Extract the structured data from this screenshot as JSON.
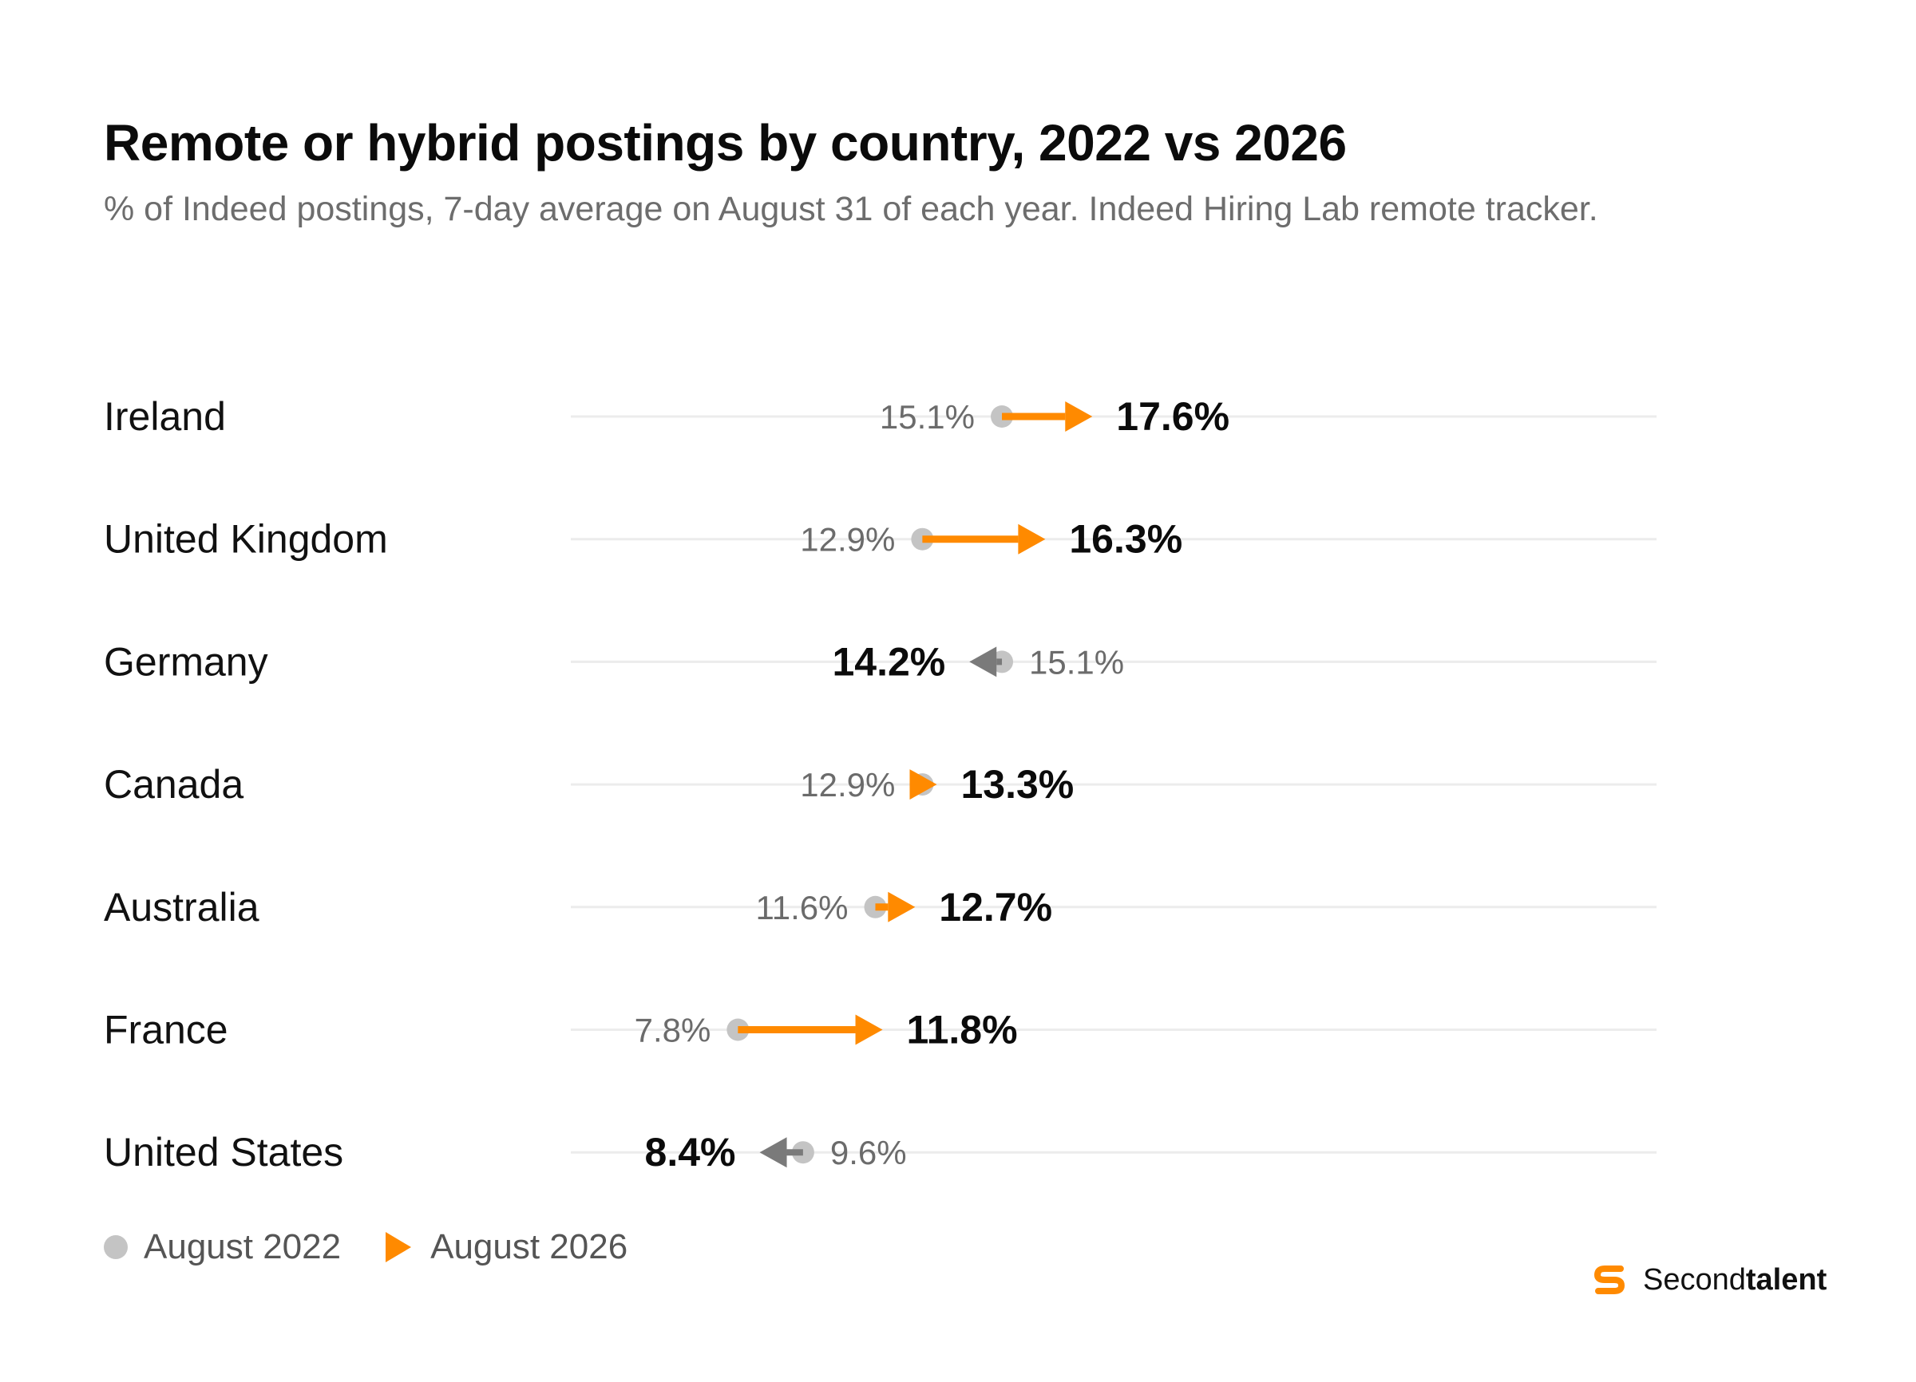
{
  "title": "Remote or hybrid postings by country, 2022 vs 2026",
  "subtitle": "% of Indeed postings, 7-day average on August 31 of each year. Indeed Hiring Lab remote tracker.",
  "legend": {
    "old_label": "August 2022",
    "new_label": "August 2026"
  },
  "brand": {
    "name_regular": "Second",
    "name_bold": "talent"
  },
  "colors": {
    "increase": "#ff8a00",
    "decrease": "#7a7a7a",
    "old_dot": "#c4c4c4",
    "gridline": "#ececec"
  },
  "chart_data": {
    "type": "dumbbell",
    "series": [
      {
        "name": "August 2022"
      },
      {
        "name": "August 2026"
      }
    ],
    "rows": [
      {
        "country": "Ireland",
        "v2022": 15.1,
        "v2026": 17.6,
        "label2022": "15.1%",
        "label2026": "17.6%"
      },
      {
        "country": "United Kingdom",
        "v2022": 12.9,
        "v2026": 16.3,
        "label2022": "12.9%",
        "label2026": "16.3%"
      },
      {
        "country": "Germany",
        "v2022": 15.1,
        "v2026": 14.2,
        "label2022": "15.1%",
        "label2026": "14.2%"
      },
      {
        "country": "Canada",
        "v2022": 12.9,
        "v2026": 13.3,
        "label2022": "12.9%",
        "label2026": "13.3%"
      },
      {
        "country": "Australia",
        "v2022": 11.6,
        "v2026": 12.7,
        "label2022": "11.6%",
        "label2026": "12.7%"
      },
      {
        "country": "France",
        "v2022": 7.8,
        "v2026": 11.8,
        "label2022": "7.8%",
        "label2026": "11.8%"
      },
      {
        "country": "United States",
        "v2022": 9.6,
        "v2026": 8.4,
        "label2022": "9.6%",
        "label2026": "8.4%"
      }
    ]
  }
}
